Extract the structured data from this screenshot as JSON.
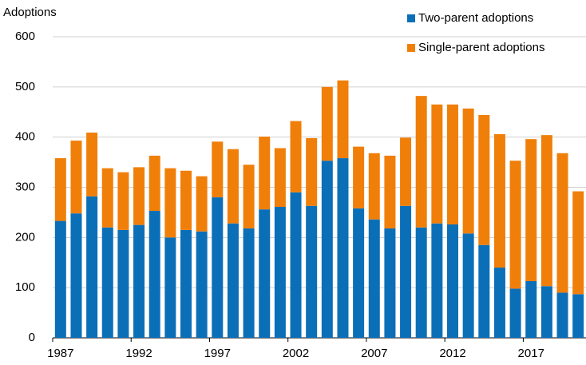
{
  "chart_data": {
    "type": "stacked-bar",
    "y_label": "Adoptions",
    "categories": [
      "1987",
      null,
      null,
      null,
      null,
      "1992",
      null,
      null,
      null,
      null,
      "1997",
      null,
      null,
      null,
      null,
      "2002",
      null,
      null,
      null,
      null,
      "2007",
      null,
      null,
      null,
      null,
      "2012",
      null,
      null,
      null,
      null,
      "2017",
      null,
      null,
      null
    ],
    "series": [
      {
        "name": "Two-parent adoptions",
        "color": "#0b6fb8",
        "values": [
          233,
          248,
          282,
          220,
          215,
          225,
          253,
          200,
          215,
          212,
          280,
          228,
          218,
          256,
          261,
          290,
          263,
          353,
          358,
          258,
          236,
          218,
          263,
          220,
          228,
          226,
          208,
          185,
          140,
          98,
          113,
          103,
          90,
          87
        ]
      },
      {
        "name": "Single-parent adoptions",
        "color": "#f07f09",
        "values": [
          125,
          145,
          127,
          118,
          115,
          115,
          110,
          138,
          118,
          110,
          111,
          148,
          127,
          145,
          117,
          142,
          135,
          147,
          155,
          123,
          132,
          145,
          136,
          262,
          237,
          239,
          249,
          259,
          266,
          255,
          283,
          301,
          278,
          205
        ]
      }
    ],
    "ylim": [
      0,
      600
    ],
    "yticks": [
      0,
      100,
      200,
      300,
      400,
      500,
      600
    ],
    "grid": true,
    "legend": "top-right"
  }
}
